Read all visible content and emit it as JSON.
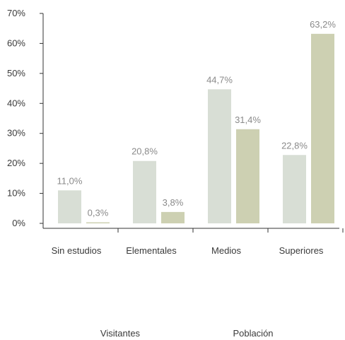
{
  "chart_data": {
    "type": "bar",
    "categories": [
      "Sin estudios",
      "Elementales",
      "Medios",
      "Superiores"
    ],
    "series": [
      {
        "name": "Visitantes",
        "values": [
          11.0,
          20.8,
          44.7,
          22.8
        ],
        "labels": [
          "11,0%",
          "20,8%",
          "44,7%",
          "22,8%"
        ],
        "color": "#d8ded5"
      },
      {
        "name": "Población",
        "values": [
          0.3,
          3.8,
          31.4,
          63.2
        ],
        "labels": [
          "0,3%",
          "3,8%",
          "31,4%",
          "63,2%"
        ],
        "color": "#cdd0b2"
      }
    ],
    "yticks": [
      "0%",
      "10%",
      "20%",
      "30%",
      "40%",
      "50%",
      "60%",
      "70%"
    ],
    "ylim": [
      0,
      70
    ],
    "title": "",
    "xlabel": "",
    "ylabel": "",
    "legend_position": "bottom",
    "grid": false
  }
}
